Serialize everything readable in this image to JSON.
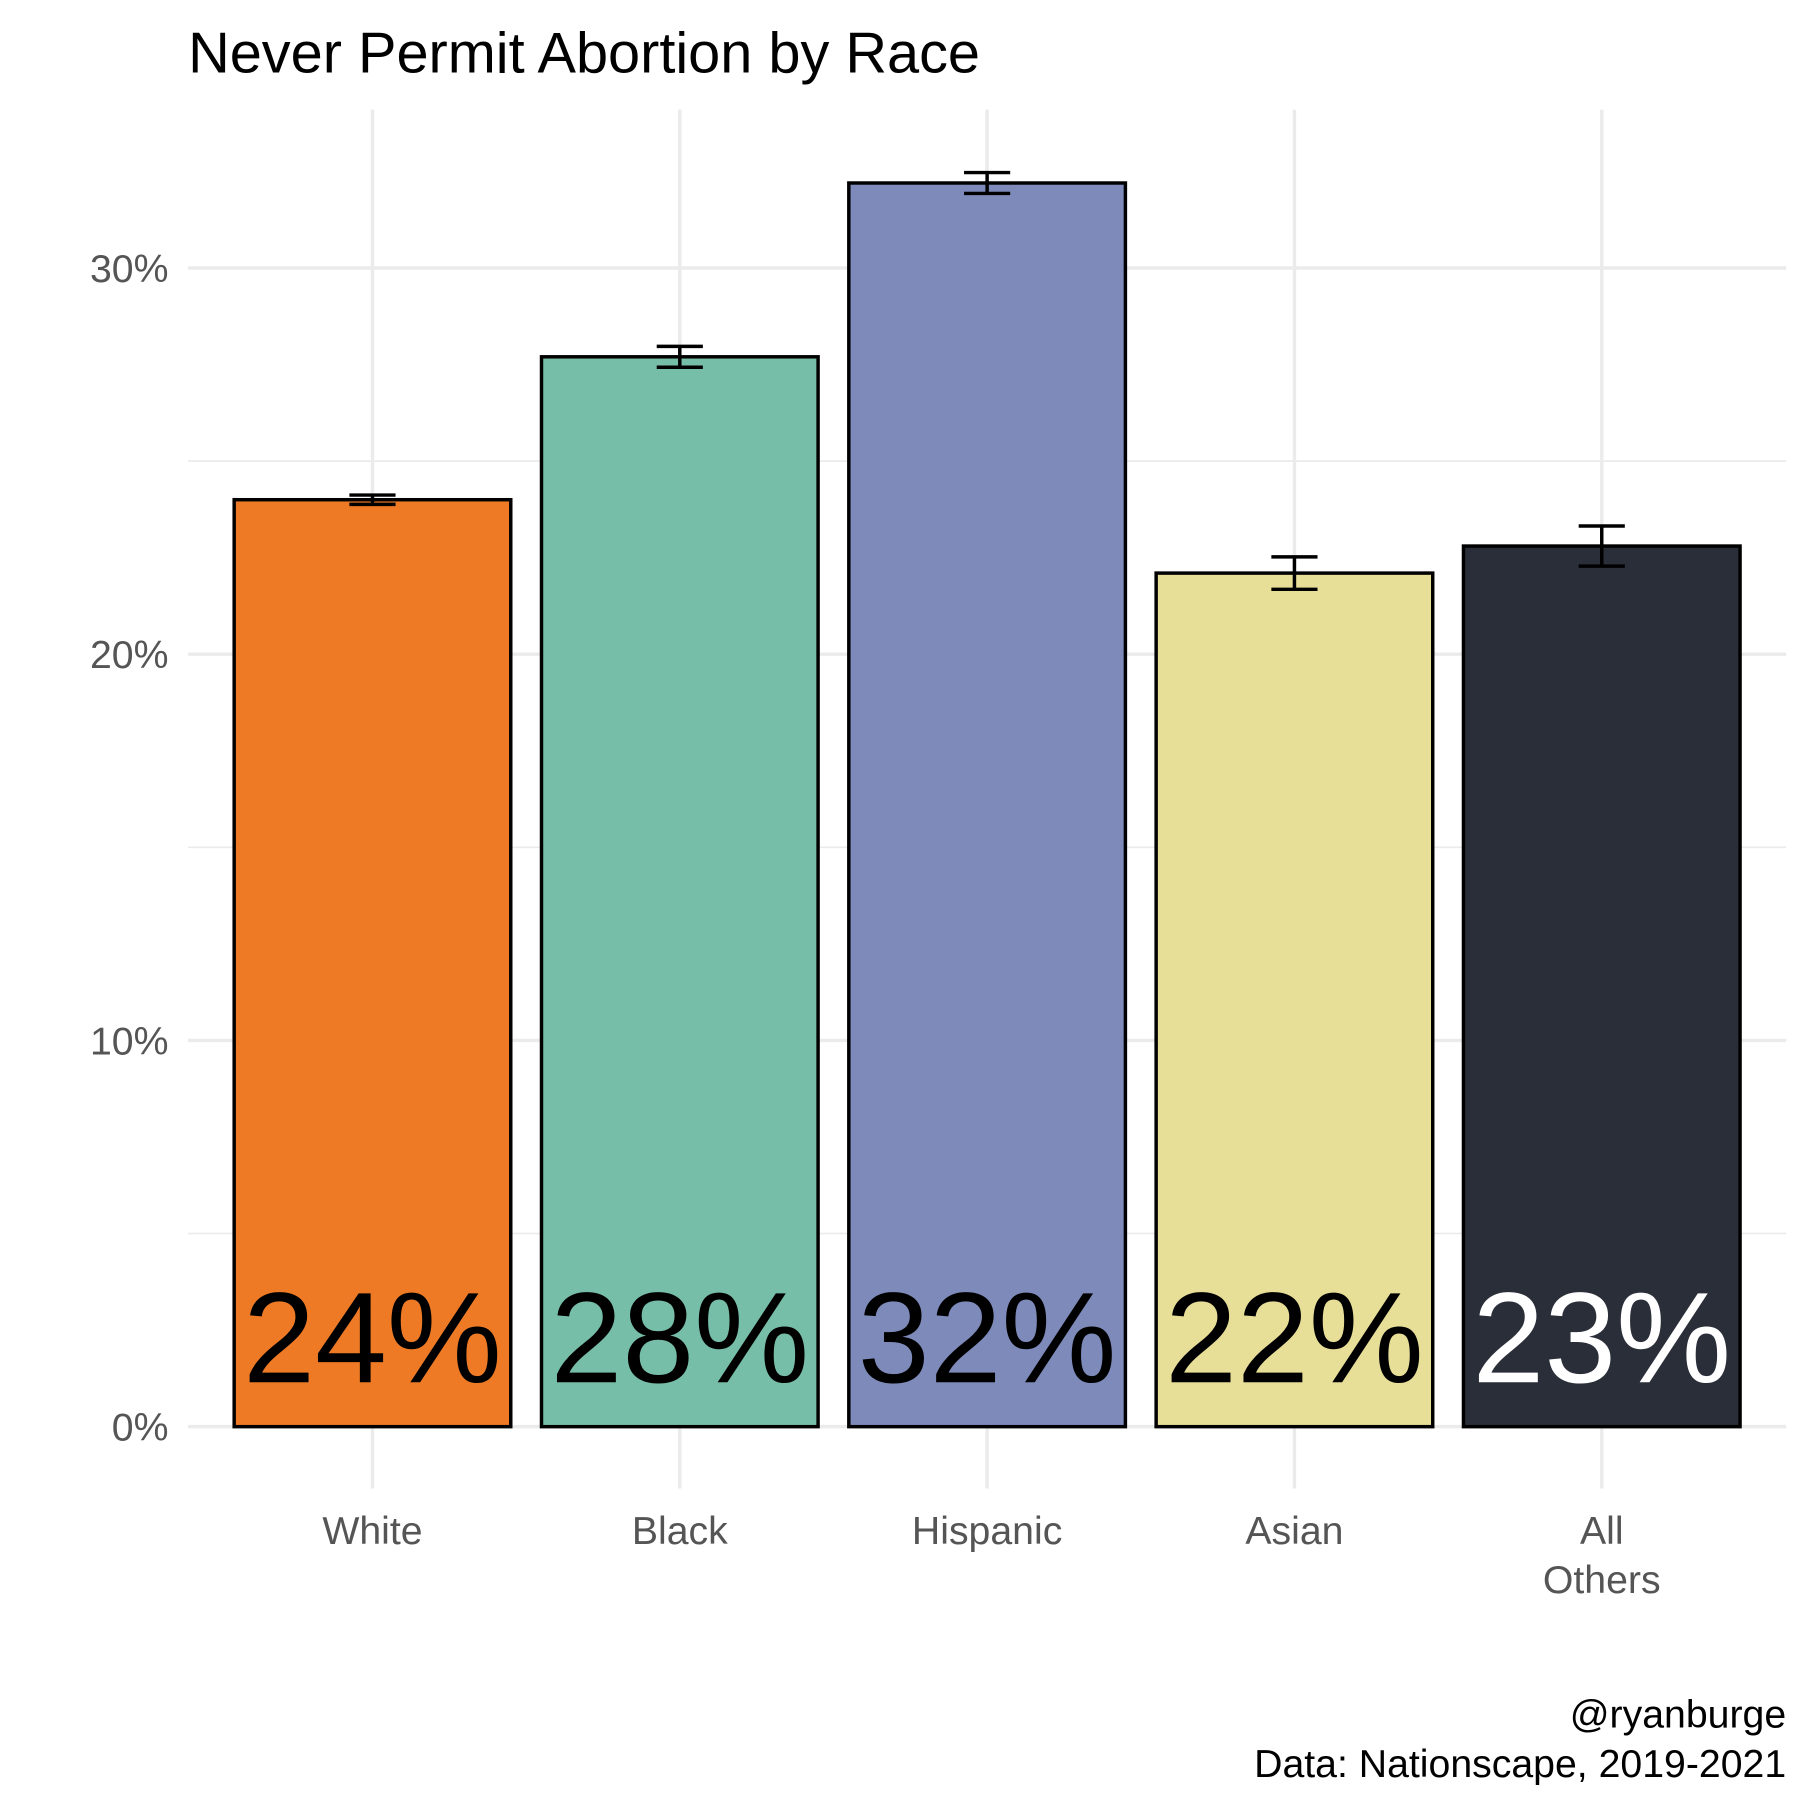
{
  "chart_data": {
    "type": "bar",
    "title": "Never Permit Abortion by Race",
    "categories": [
      "White",
      "Black",
      "Hispanic",
      "Asian",
      "All\nOthers"
    ],
    "values": [
      24.0,
      27.7,
      32.2,
      22.1,
      22.8
    ],
    "errors": [
      0.12,
      0.27,
      0.27,
      0.42,
      0.52
    ],
    "value_labels": [
      "24%",
      "28%",
      "32%",
      "22%",
      "23%"
    ],
    "colors": [
      "#ee7a25",
      "#77bea9",
      "#7d8aba",
      "#e7de97",
      "#2a2e38"
    ],
    "value_label_colors": [
      "#000000",
      "#000000",
      "#000000",
      "#000000",
      "#ffffff"
    ],
    "ylim": [
      -1.6,
      34.1
    ],
    "yticks": [
      {
        "value": 0,
        "label": "0%"
      },
      {
        "value": 10,
        "label": "10%"
      },
      {
        "value": 20,
        "label": "20%"
      },
      {
        "value": 30,
        "label": "30%"
      }
    ],
    "minor_yticks": [
      5,
      15,
      25
    ],
    "grid": true,
    "caption": [
      "@ryanburge",
      "Data: Nationscape, 2019-2021"
    ]
  }
}
